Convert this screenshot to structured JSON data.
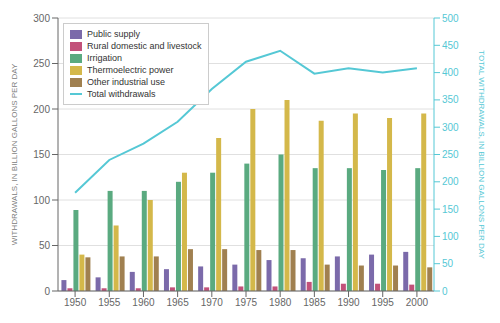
{
  "chart_data": {
    "type": "bar",
    "categories": [
      "1950",
      "1955",
      "1960",
      "1965",
      "1970",
      "1975",
      "1980",
      "1985",
      "1990",
      "1995",
      "2000"
    ],
    "series": [
      {
        "name": "Public supply",
        "color": "#7b6aaa",
        "values": [
          12,
          15,
          21,
          24,
          27,
          29,
          34,
          36,
          38,
          40,
          43
        ]
      },
      {
        "name": "Rural domestic and livestock",
        "color": "#c2517a",
        "values": [
          3,
          3,
          3,
          4,
          4,
          5,
          5,
          10,
          8,
          8,
          7
        ]
      },
      {
        "name": "Irrigation",
        "color": "#5aaa80",
        "values": [
          89,
          110,
          110,
          120,
          130,
          140,
          150,
          135,
          135,
          133,
          135
        ]
      },
      {
        "name": "Thermoelectric power",
        "color": "#d4b84a",
        "values": [
          40,
          72,
          100,
          130,
          168,
          200,
          210,
          187,
          195,
          190,
          195
        ]
      },
      {
        "name": "Other industrial use",
        "color": "#a08050",
        "values": [
          37,
          38,
          38,
          46,
          46,
          45,
          45,
          29,
          28,
          28,
          26
        ]
      },
      {
        "name": "Total withdrawals",
        "type": "line",
        "axis": "y2",
        "color": "#55c8d5",
        "values": [
          180,
          240,
          270,
          310,
          370,
          420,
          440,
          398,
          408,
          400,
          408
        ]
      }
    ],
    "y_label": "WITHDRAWALS, IN BILLION GALLONS PER DAY",
    "y2_label": "TOTAL WITHDRAWALS, IN BILLION GALLONS PER DAY",
    "ylim": [
      0,
      300
    ],
    "yticks": [
      0,
      50,
      100,
      150,
      200,
      250,
      300
    ],
    "y2lim": [
      0,
      500
    ],
    "y2ticks": [
      0,
      50,
      100,
      150,
      200,
      250,
      300,
      350,
      400,
      450,
      500
    ],
    "grid": true,
    "legend": "upper left"
  }
}
